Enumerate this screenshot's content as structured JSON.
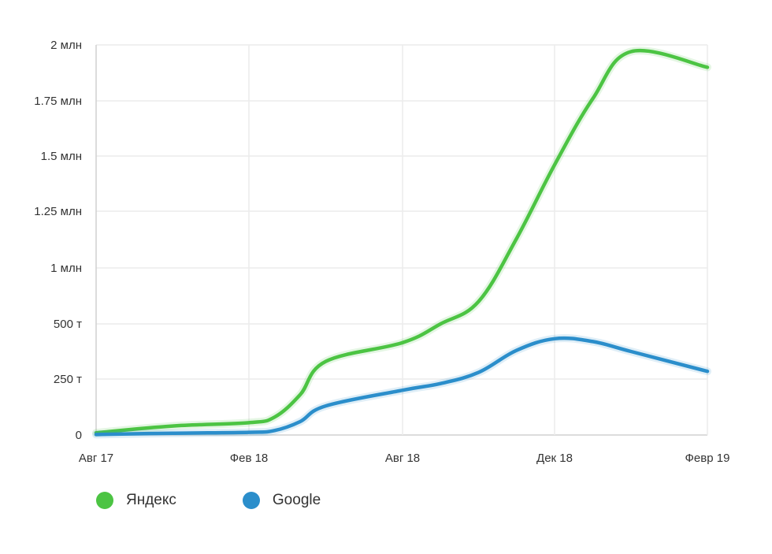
{
  "chart_data": {
    "type": "line",
    "x_ticks": [
      "Авг 17",
      "Фев 18",
      "Авг 18",
      "Дек 18",
      "Февр 19"
    ],
    "y_ticks": [
      {
        "value": 0,
        "label": "0"
      },
      {
        "value": 250000,
        "label": "250 т"
      },
      {
        "value": 500000,
        "label": "500 т"
      },
      {
        "value": 1000000,
        "label": "1 млн"
      },
      {
        "value": 1250000,
        "label": "1.25 млн"
      },
      {
        "value": 1500000,
        "label": "1.5 млн"
      },
      {
        "value": 1750000,
        "label": "1.75 млн"
      },
      {
        "value": 2000000,
        "label": "2 млн"
      }
    ],
    "series": [
      {
        "name": "Яндекс",
        "color": "#4cc443",
        "points": [
          {
            "x": "2017-08",
            "y": 10000
          },
          {
            "x": "2017-11",
            "y": 40000
          },
          {
            "x": "2018-02",
            "y": 55000
          },
          {
            "x": "2018-03",
            "y": 80000
          },
          {
            "x": "2018-04",
            "y": 180000
          },
          {
            "x": "2018-05",
            "y": 330000
          },
          {
            "x": "2018-08",
            "y": 415000
          },
          {
            "x": "2018-09",
            "y": 500000
          },
          {
            "x": "2018-10",
            "y": 700000
          },
          {
            "x": "2018-11",
            "y": 1130000
          },
          {
            "x": "2018-12",
            "y": 1460000
          },
          {
            "x": "2019-01",
            "y": 1760000
          },
          {
            "x": "2019-02",
            "y": 1970000
          },
          {
            "x": "2019-04",
            "y": 1900000
          }
        ]
      },
      {
        "name": "Google",
        "color": "#2b8ecb",
        "points": [
          {
            "x": "2017-08",
            "y": 2000
          },
          {
            "x": "2017-11",
            "y": 8000
          },
          {
            "x": "2018-02",
            "y": 12000
          },
          {
            "x": "2018-03",
            "y": 20000
          },
          {
            "x": "2018-04",
            "y": 60000
          },
          {
            "x": "2018-05",
            "y": 130000
          },
          {
            "x": "2018-08",
            "y": 200000
          },
          {
            "x": "2018-09",
            "y": 230000
          },
          {
            "x": "2018-10",
            "y": 280000
          },
          {
            "x": "2018-11",
            "y": 380000
          },
          {
            "x": "2018-12",
            "y": 433000
          },
          {
            "x": "2019-01",
            "y": 420000
          },
          {
            "x": "2019-02",
            "y": 375000
          },
          {
            "x": "2019-04",
            "y": 285000
          }
        ]
      }
    ],
    "grid": true,
    "legend_position": "bottom-left"
  }
}
